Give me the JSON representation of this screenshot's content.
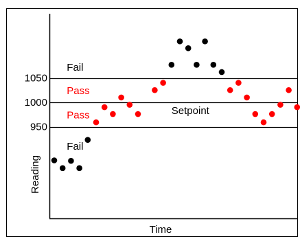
{
  "chart_data": {
    "type": "scatter",
    "title": "",
    "xlabel": "Time",
    "ylabel": "Reading",
    "ylim": [
      800,
      1200
    ],
    "yticks": [
      {
        "value": 1050,
        "label": "1050"
      },
      {
        "value": 1000,
        "label": "1000"
      },
      {
        "value": 950,
        "label": "950"
      }
    ],
    "reference_lines": [
      {
        "value": 1050
      },
      {
        "value": 1000
      },
      {
        "value": 950
      }
    ],
    "annotations": [
      {
        "text": "Fail",
        "x": 2.5,
        "y": 1072,
        "color": "#000000"
      },
      {
        "text": "Pass",
        "x": 2.5,
        "y": 1024,
        "color": "#ff0000"
      },
      {
        "text": "Pass",
        "x": 2.5,
        "y": 974,
        "color": "#ff0000"
      },
      {
        "text": "Setpoint",
        "x": 15,
        "y": 983,
        "color": "#000000"
      },
      {
        "text": "Fail",
        "x": 2.5,
        "y": 910,
        "color": "#000000"
      }
    ],
    "series": [
      {
        "color": "#000000",
        "points": [
          {
            "x": 1,
            "y": 881
          },
          {
            "x": 2,
            "y": 865
          },
          {
            "x": 3,
            "y": 880
          },
          {
            "x": 4,
            "y": 865
          },
          {
            "x": 5,
            "y": 923
          },
          {
            "x": 15,
            "y": 1077
          },
          {
            "x": 16,
            "y": 1125
          },
          {
            "x": 17,
            "y": 1111
          },
          {
            "x": 18,
            "y": 1077
          },
          {
            "x": 19,
            "y": 1125
          },
          {
            "x": 20,
            "y": 1077
          },
          {
            "x": 21,
            "y": 1062
          }
        ]
      },
      {
        "color": "#ff0000",
        "points": [
          {
            "x": 6,
            "y": 959
          },
          {
            "x": 7,
            "y": 990
          },
          {
            "x": 8,
            "y": 976
          },
          {
            "x": 9,
            "y": 1010
          },
          {
            "x": 10,
            "y": 995
          },
          {
            "x": 11,
            "y": 976
          },
          {
            "x": 13,
            "y": 1025
          },
          {
            "x": 14,
            "y": 1040
          },
          {
            "x": 22,
            "y": 1025
          },
          {
            "x": 23,
            "y": 1040
          },
          {
            "x": 24,
            "y": 1010
          },
          {
            "x": 25,
            "y": 976
          },
          {
            "x": 26,
            "y": 959
          },
          {
            "x": 27,
            "y": 976
          },
          {
            "x": 28,
            "y": 995
          },
          {
            "x": 29,
            "y": 1025
          },
          {
            "x": 30,
            "y": 990
          },
          {
            "x": 31,
            "y": 976
          }
        ]
      }
    ]
  }
}
